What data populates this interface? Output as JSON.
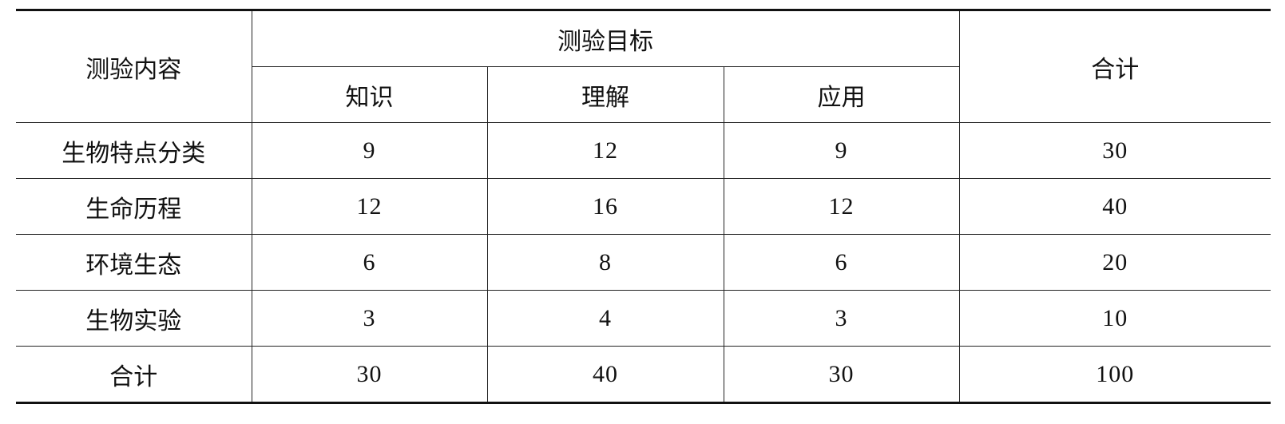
{
  "header": {
    "content": "测验内容",
    "goals": "测验目标",
    "total": "合计",
    "sub": [
      "知识",
      "理解",
      "应用"
    ]
  },
  "rows": [
    {
      "label": "生物特点分类",
      "values": [
        "9",
        "12",
        "9",
        "30"
      ]
    },
    {
      "label": "生命历程",
      "values": [
        "12",
        "16",
        "12",
        "40"
      ]
    },
    {
      "label": "环境生态",
      "values": [
        "6",
        "8",
        "6",
        "20"
      ]
    },
    {
      "label": "生物实验",
      "values": [
        "3",
        "4",
        "3",
        "10"
      ]
    },
    {
      "label": "合计",
      "values": [
        "30",
        "40",
        "30",
        "100"
      ]
    }
  ]
}
